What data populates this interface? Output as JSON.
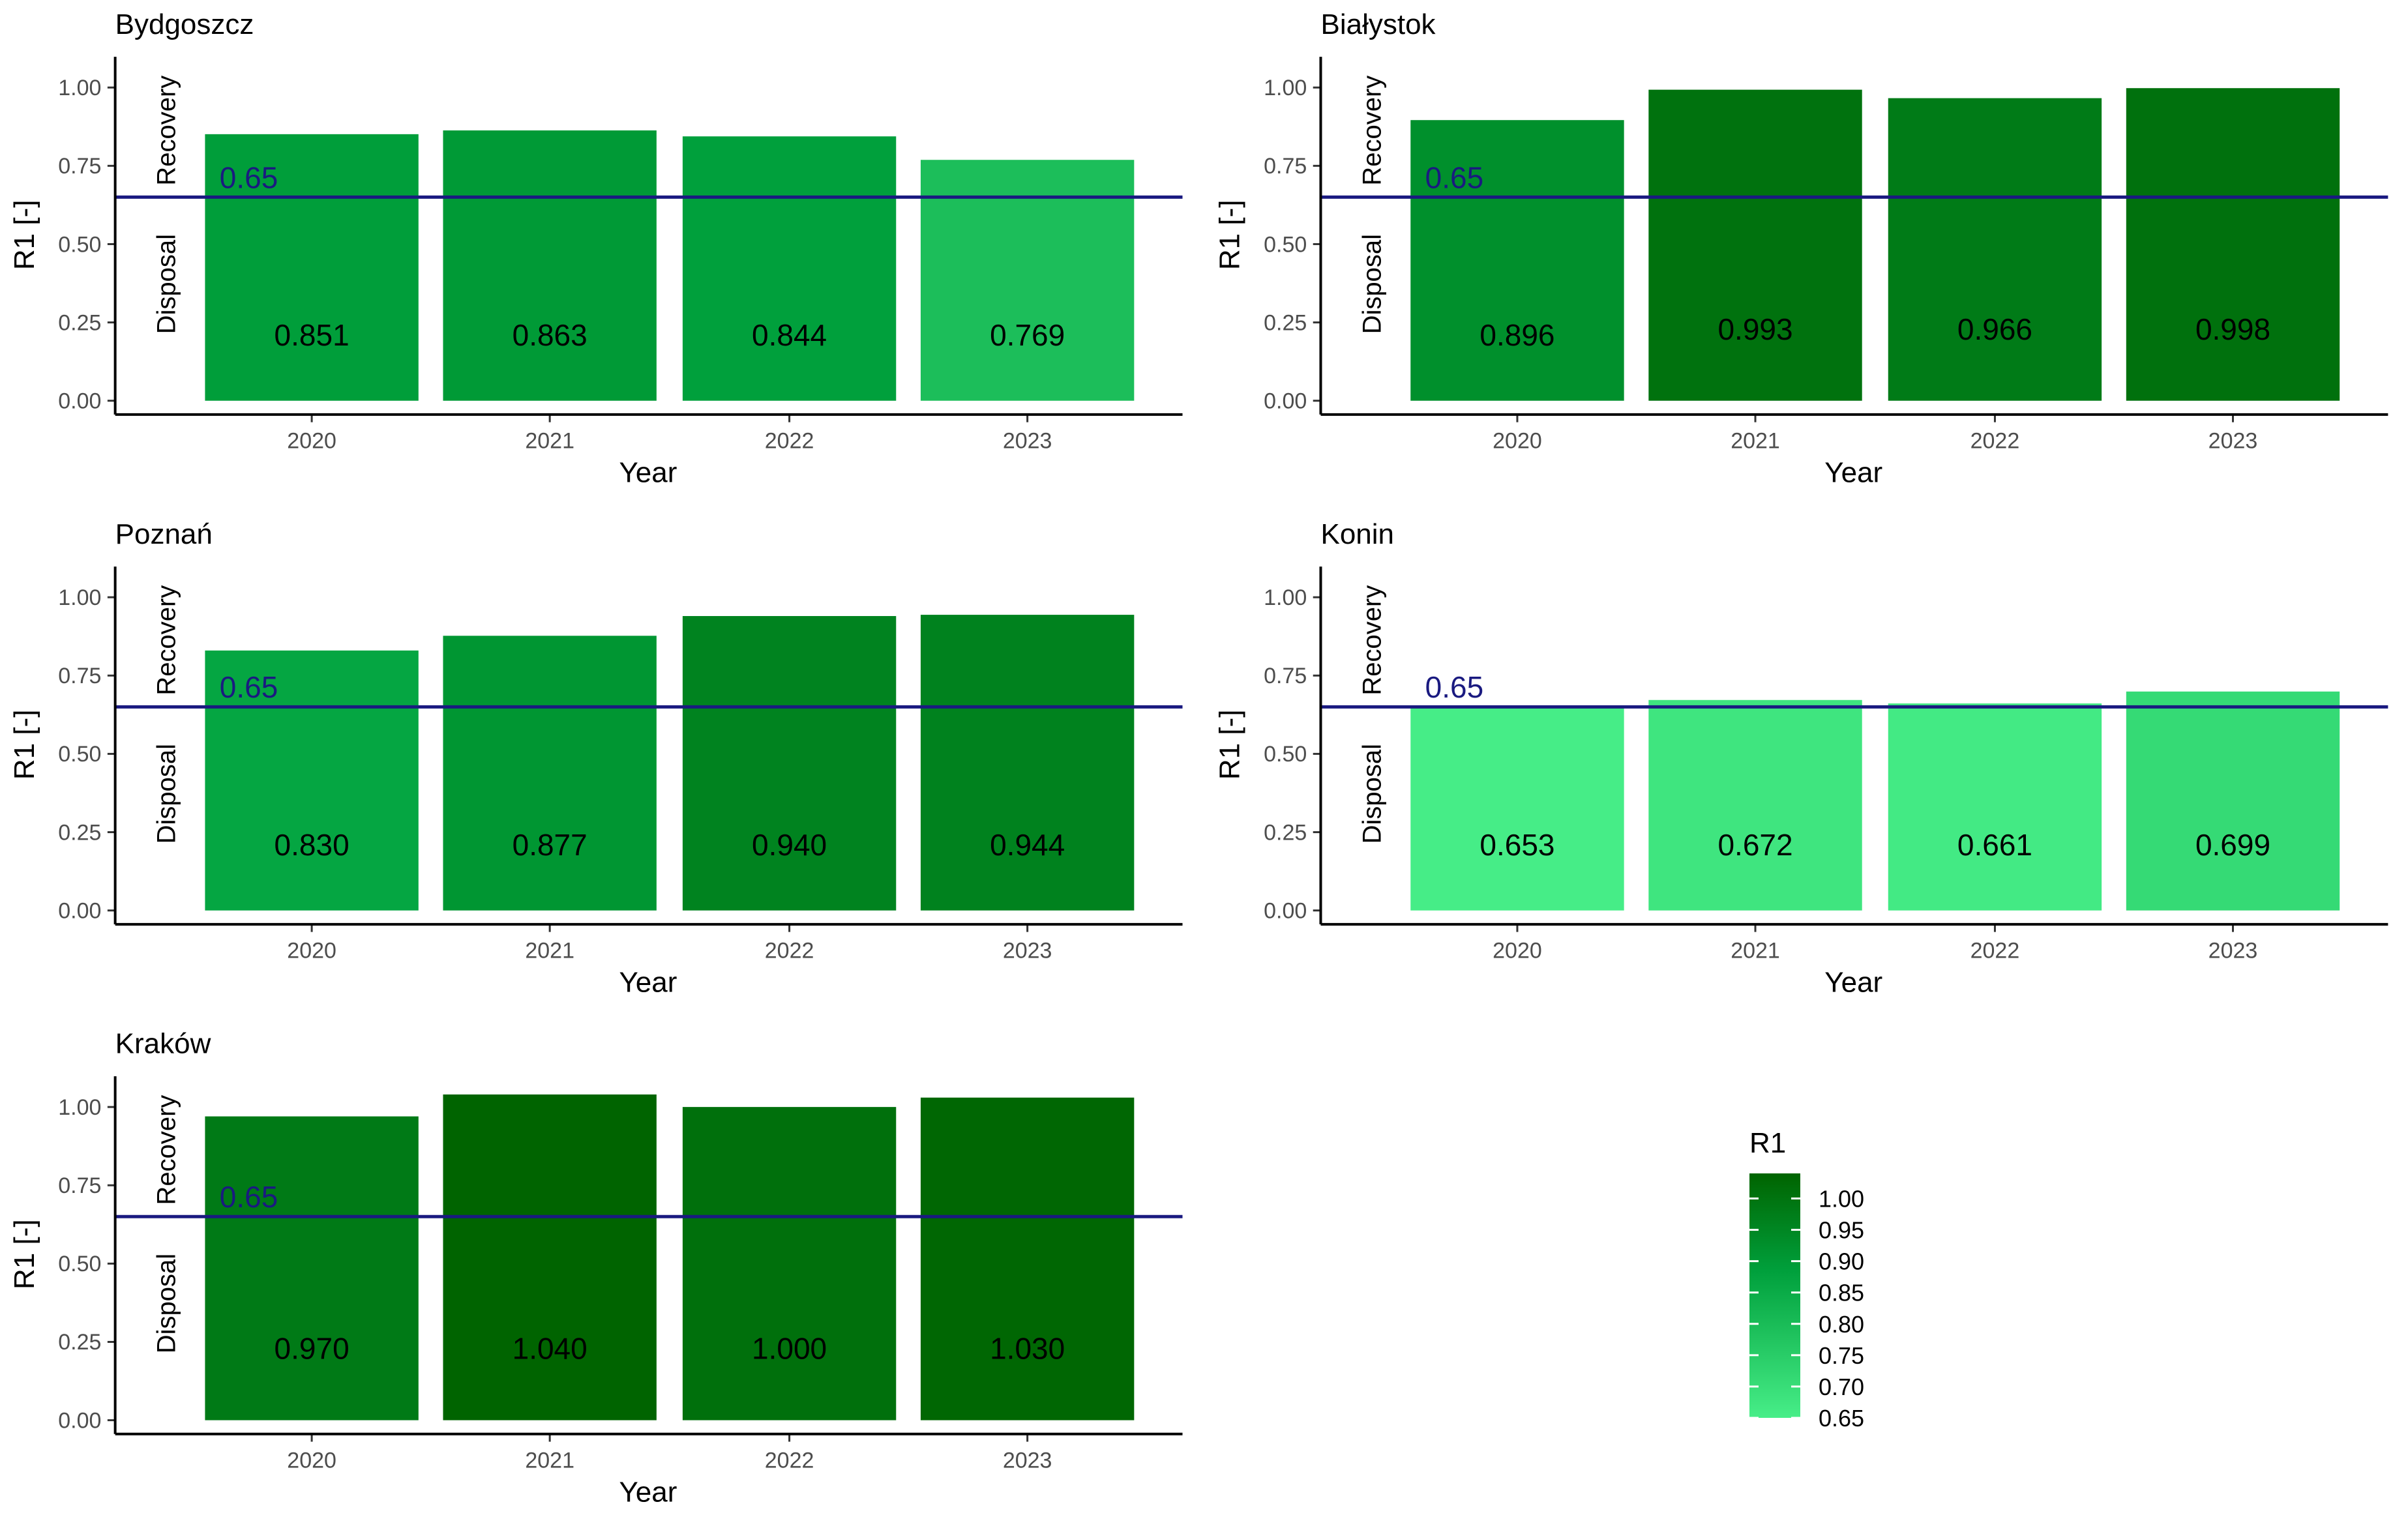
{
  "chart_data": [
    {
      "type": "bar",
      "title": "Bydgoszcz",
      "categories": [
        "2020",
        "2021",
        "2022",
        "2023"
      ],
      "values": [
        0.851,
        0.863,
        0.844,
        0.769
      ],
      "value_labels": [
        "0.851",
        "0.863",
        "0.844",
        "0.769"
      ],
      "xlabel": "Year",
      "ylabel": "R1 [-]",
      "ylim": [
        0,
        1.08
      ],
      "yticks": [
        "0.00",
        "0.25",
        "0.50",
        "0.75",
        "1.00"
      ],
      "zones": {
        "upper": "Recovery",
        "lower": "Disposal"
      },
      "reference_line": {
        "value": 0.65,
        "label": "0.65"
      }
    },
    {
      "type": "bar",
      "title": "Białystok",
      "categories": [
        "2020",
        "2021",
        "2022",
        "2023"
      ],
      "values": [
        0.896,
        0.993,
        0.966,
        0.998
      ],
      "value_labels": [
        "0.896",
        "0.993",
        "0.966",
        "0.998"
      ],
      "xlabel": "Year",
      "ylabel": "R1 [-]",
      "ylim": [
        0,
        1.08
      ],
      "yticks": [
        "0.00",
        "0.25",
        "0.50",
        "0.75",
        "1.00"
      ],
      "zones": {
        "upper": "Recovery",
        "lower": "Disposal"
      },
      "reference_line": {
        "value": 0.65,
        "label": "0.65"
      }
    },
    {
      "type": "bar",
      "title": "Poznań",
      "categories": [
        "2020",
        "2021",
        "2022",
        "2023"
      ],
      "values": [
        0.83,
        0.877,
        0.94,
        0.944
      ],
      "value_labels": [
        "0.830",
        "0.877",
        "0.940",
        "0.944"
      ],
      "xlabel": "Year",
      "ylabel": "R1 [-]",
      "ylim": [
        0,
        1.08
      ],
      "yticks": [
        "0.00",
        "0.25",
        "0.50",
        "0.75",
        "1.00"
      ],
      "zones": {
        "upper": "Recovery",
        "lower": "Disposal"
      },
      "reference_line": {
        "value": 0.65,
        "label": "0.65"
      }
    },
    {
      "type": "bar",
      "title": "Konin",
      "categories": [
        "2020",
        "2021",
        "2022",
        "2023"
      ],
      "values": [
        0.653,
        0.672,
        0.661,
        0.699
      ],
      "value_labels": [
        "0.653",
        "0.672",
        "0.661",
        "0.699"
      ],
      "xlabel": "Year",
      "ylabel": "R1 [-]",
      "ylim": [
        0,
        1.08
      ],
      "yticks": [
        "0.00",
        "0.25",
        "0.50",
        "0.75",
        "1.00"
      ],
      "zones": {
        "upper": "Recovery",
        "lower": "Disposal"
      },
      "reference_line": {
        "value": 0.65,
        "label": "0.65"
      }
    },
    {
      "type": "bar",
      "title": "Kraków",
      "categories": [
        "2020",
        "2021",
        "2022",
        "2023"
      ],
      "values": [
        0.97,
        1.04,
        1.0,
        1.03
      ],
      "value_labels": [
        "0.970",
        "1.040",
        "1.000",
        "1.030"
      ],
      "xlabel": "Year",
      "ylabel": "R1 [-]",
      "ylim": [
        0,
        1.08
      ],
      "yticks": [
        "0.00",
        "0.25",
        "0.50",
        "0.75",
        "1.00"
      ],
      "zones": {
        "upper": "Recovery",
        "lower": "Disposal"
      },
      "reference_line": {
        "value": 0.65,
        "label": "0.65"
      }
    }
  ],
  "legend": {
    "title": "R1",
    "ticks": [
      "1.00",
      "0.95",
      "0.90",
      "0.85",
      "0.80",
      "0.75",
      "0.70",
      "0.65"
    ],
    "range": [
      0.65,
      1.04
    ],
    "color_low": "#47ee88",
    "color_mid": "#00a03c",
    "color_high": "#006400"
  },
  "colors": {
    "reference_line": "#1a1a80",
    "reference_label": "#1a1a80",
    "axis": "#000000"
  }
}
